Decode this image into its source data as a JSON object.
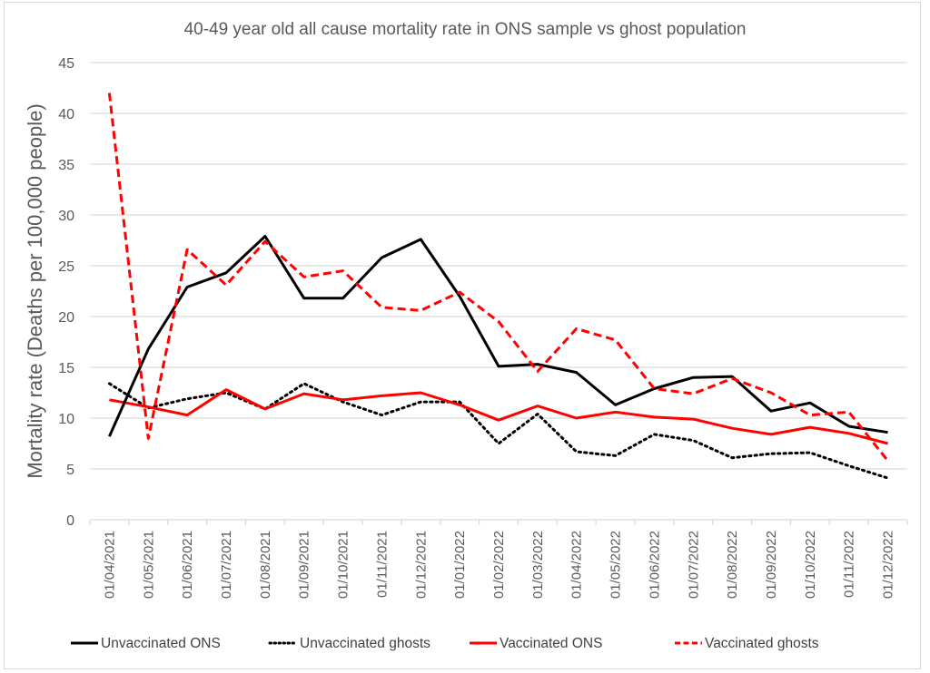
{
  "chart_data": {
    "type": "line",
    "title": "40-49 year old all cause mortality rate in ONS sample vs ghost population",
    "xlabel": "",
    "ylabel": "Mortality rate (Deaths per 100,000 people)",
    "ylim": [
      0,
      45
    ],
    "yticks": [
      0,
      5,
      10,
      15,
      20,
      25,
      30,
      35,
      40,
      45
    ],
    "grid": true,
    "legend_position": "bottom",
    "categories": [
      "01/04/2021",
      "01/05/2021",
      "01/06/2021",
      "01/07/2021",
      "01/08/2021",
      "01/09/2021",
      "01/10/2021",
      "01/11/2021",
      "01/12/2021",
      "01/01/2022",
      "01/02/2022",
      "01/03/2022",
      "01/04/2022",
      "01/05/2022",
      "01/06/2022",
      "01/07/2022",
      "01/08/2022",
      "01/09/2022",
      "01/10/2022",
      "01/11/2022",
      "01/12/2022"
    ],
    "series": [
      {
        "name": "Unvaccinated ONS",
        "color": "#000000",
        "style": "solid",
        "values": [
          8.2,
          16.8,
          22.9,
          24.3,
          27.9,
          21.8,
          21.8,
          25.8,
          27.6,
          22.0,
          15.1,
          15.3,
          14.5,
          11.3,
          12.9,
          14.0,
          14.1,
          10.7,
          11.5,
          9.2,
          8.6
        ]
      },
      {
        "name": "Unvaccinated ghosts",
        "color": "#000000",
        "style": "dotted",
        "values": [
          13.4,
          11.0,
          11.9,
          12.5,
          10.9,
          13.4,
          11.6,
          10.3,
          11.6,
          11.6,
          7.5,
          10.4,
          6.7,
          6.3,
          8.4,
          7.8,
          6.1,
          6.5,
          6.6,
          5.3,
          4.1
        ]
      },
      {
        "name": "Vaccinated ONS",
        "color": "#ff0000",
        "style": "solid",
        "values": [
          11.8,
          11.1,
          10.3,
          12.8,
          10.9,
          12.4,
          11.8,
          12.2,
          12.5,
          11.3,
          9.8,
          11.2,
          10.0,
          10.6,
          10.1,
          9.9,
          9.0,
          8.4,
          9.1,
          8.5,
          7.5
        ]
      },
      {
        "name": "Vaccinated ghosts",
        "color": "#ff0000",
        "style": "dashed",
        "values": [
          42.0,
          8.0,
          26.6,
          23.1,
          27.4,
          23.9,
          24.5,
          20.9,
          20.6,
          22.4,
          19.5,
          14.6,
          18.8,
          17.7,
          12.9,
          12.4,
          13.9,
          12.5,
          10.3,
          10.6,
          5.8
        ]
      }
    ]
  }
}
